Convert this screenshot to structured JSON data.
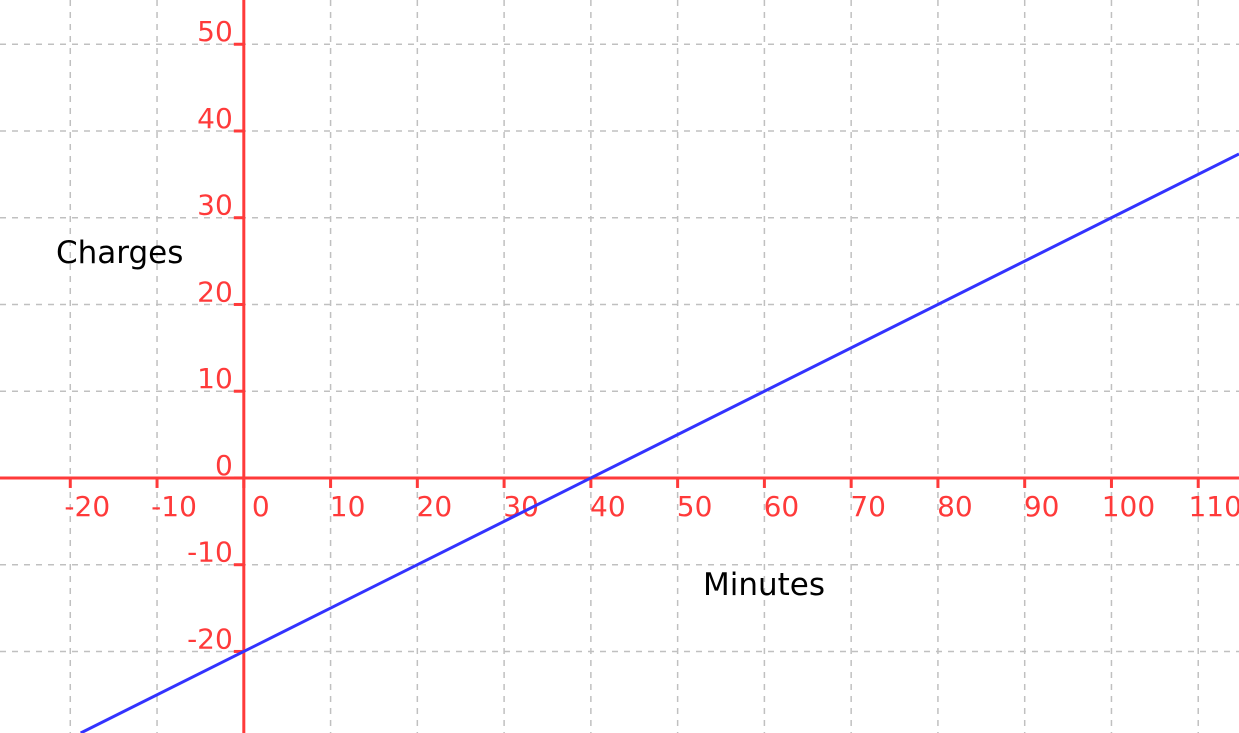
{
  "chart_data": {
    "type": "line",
    "title": "",
    "xlabel": "Minutes",
    "ylabel": "Charges",
    "xlim": [
      -28.1,
      114.7
    ],
    "ylim": [
      -29.4,
      55.1
    ],
    "x_ticks": [
      -20,
      -10,
      0,
      10,
      20,
      30,
      40,
      50,
      60,
      70,
      80,
      90,
      100,
      110
    ],
    "y_ticks": [
      -20,
      -10,
      0,
      10,
      20,
      30,
      40,
      50
    ],
    "x_tick_labels": [
      "-20",
      "-10",
      "0",
      "10",
      "20",
      "30",
      "40",
      "50",
      "60",
      "70",
      "80",
      "90",
      "100",
      "110"
    ],
    "y_tick_labels": [
      "-20",
      "-10",
      "0",
      "10",
      "20",
      "30",
      "40",
      "50"
    ],
    "grid": true,
    "series": [
      {
        "x": [
          -28.1,
          0,
          40,
          114.7
        ],
        "y": [
          -34.05,
          -20,
          0,
          37.35
        ]
      }
    ],
    "colors": {
      "axis": "#ff3a3a",
      "line": "#3333ff",
      "grid": "#c0c0c0",
      "label": "#000000"
    }
  }
}
